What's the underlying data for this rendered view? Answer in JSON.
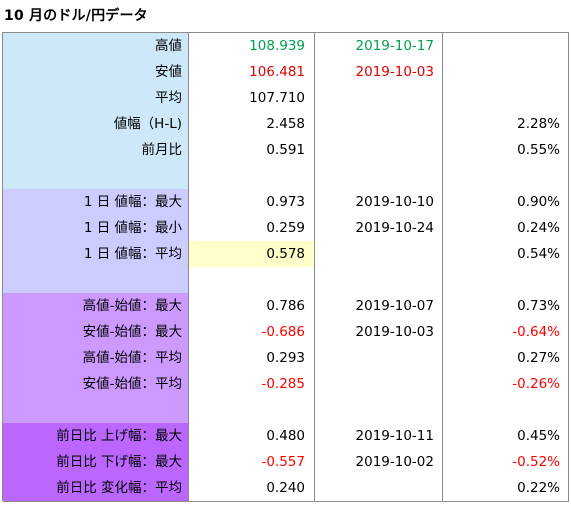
{
  "title": "10 月のドル/円データ",
  "rows": [
    {
      "label": "高値",
      "value": "108.939",
      "date": "2019-10-17",
      "pct": "",
      "group": "g0",
      "vcls": "green",
      "dcls": "green",
      "pcls": "",
      "hl": false
    },
    {
      "label": "安値",
      "value": "106.481",
      "date": "2019-10-03",
      "pct": "",
      "group": "g0",
      "vcls": "red",
      "dcls": "red",
      "pcls": "",
      "hl": false
    },
    {
      "label": "平均",
      "value": "107.710",
      "date": "",
      "pct": "",
      "group": "g0",
      "vcls": "",
      "dcls": "",
      "pcls": "",
      "hl": false
    },
    {
      "label": "値幅（H-L)",
      "value": "2.458",
      "date": "",
      "pct": "2.28%",
      "group": "g0",
      "vcls": "",
      "dcls": "",
      "pcls": "",
      "hl": false
    },
    {
      "label": "前月比",
      "value": "0.591",
      "date": "",
      "pct": "0.55%",
      "group": "g0",
      "vcls": "",
      "dcls": "",
      "pcls": "",
      "hl": false
    },
    {
      "label": "",
      "value": "",
      "date": "",
      "pct": "",
      "group": "g0",
      "vcls": "",
      "dcls": "",
      "pcls": "",
      "hl": false
    },
    {
      "label": "1 日 値幅：最大",
      "value": "0.973",
      "date": "2019-10-10",
      "pct": "0.90%",
      "group": "g1",
      "vcls": "",
      "dcls": "",
      "pcls": "",
      "hl": false
    },
    {
      "label": "1 日 値幅：最小",
      "value": "0.259",
      "date": "2019-10-24",
      "pct": "0.24%",
      "group": "g1",
      "vcls": "",
      "dcls": "",
      "pcls": "",
      "hl": false
    },
    {
      "label": "1 日 値幅：平均",
      "value": "0.578",
      "date": "",
      "pct": "0.54%",
      "group": "g1",
      "vcls": "",
      "dcls": "",
      "pcls": "",
      "hl": true
    },
    {
      "label": "",
      "value": "",
      "date": "",
      "pct": "",
      "group": "g1",
      "vcls": "",
      "dcls": "",
      "pcls": "",
      "hl": false
    },
    {
      "label": "高値-始値：最大",
      "value": "0.786",
      "date": "2019-10-07",
      "pct": "0.73%",
      "group": "g2",
      "vcls": "",
      "dcls": "",
      "pcls": "",
      "hl": false
    },
    {
      "label": "安値-始値：最大",
      "value": "-0.686",
      "date": "2019-10-03",
      "pct": "-0.64%",
      "group": "g2",
      "vcls": "neg",
      "dcls": "",
      "pcls": "neg",
      "hl": false
    },
    {
      "label": "高値-始値：平均",
      "value": "0.293",
      "date": "",
      "pct": "0.27%",
      "group": "g2",
      "vcls": "",
      "dcls": "",
      "pcls": "",
      "hl": false
    },
    {
      "label": "安値-始値：平均",
      "value": "-0.285",
      "date": "",
      "pct": "-0.26%",
      "group": "g2",
      "vcls": "neg",
      "dcls": "",
      "pcls": "neg",
      "hl": false
    },
    {
      "label": "",
      "value": "",
      "date": "",
      "pct": "",
      "group": "g2",
      "vcls": "",
      "dcls": "",
      "pcls": "",
      "hl": false
    },
    {
      "label": "前日比 上げ幅：最大",
      "value": "0.480",
      "date": "2019-10-11",
      "pct": "0.45%",
      "group": "g3",
      "vcls": "",
      "dcls": "",
      "pcls": "",
      "hl": false
    },
    {
      "label": "前日比 下げ幅：最大",
      "value": "-0.557",
      "date": "2019-10-02",
      "pct": "-0.52%",
      "group": "g3",
      "vcls": "neg",
      "dcls": "",
      "pcls": "neg",
      "hl": false
    },
    {
      "label": "前日比 変化幅：平均",
      "value": "0.240",
      "date": "",
      "pct": "0.22%",
      "group": "g3",
      "vcls": "",
      "dcls": "",
      "pcls": "",
      "hl": false
    }
  ],
  "colors": {
    "group_blue": "#cde8f8",
    "group_lavender": "#ccccff",
    "group_purple": "#cc99ff",
    "group_violet": "#bb66ff",
    "highlight_yellow": "#ffffcc",
    "high_green": "#00a050",
    "low_red": "#e00000",
    "negative_red": "#ff0000"
  }
}
